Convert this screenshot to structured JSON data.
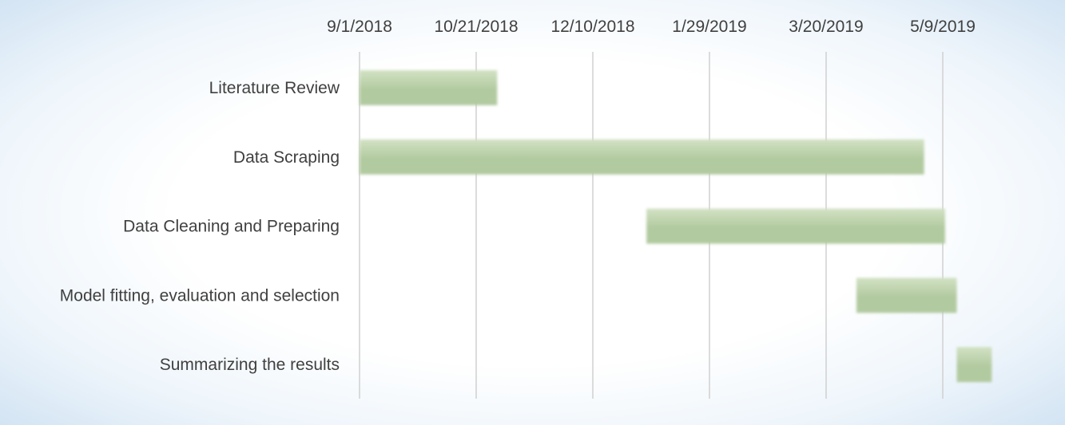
{
  "chart_data": {
    "type": "bar",
    "orientation": "horizontal",
    "subtype": "gantt",
    "title": "",
    "xlabel": "",
    "ylabel": "",
    "x_axis_position": "top",
    "x_ticks": [
      "9/1/2018",
      "10/21/2018",
      "12/10/2018",
      "1/29/2019",
      "3/20/2019",
      "5/9/2019"
    ],
    "xlim": [
      "9/1/2018",
      "6/8/2019"
    ],
    "grid": true,
    "legend": "none",
    "categories": [
      "Literature Review",
      "Data Scraping",
      "Data Cleaning and Preparing",
      "Model fitting, evaluation and selection",
      "Summarizing the results"
    ],
    "tasks": [
      {
        "label": "Literature Review",
        "start": "9/1/2018",
        "end": "10/30/2018"
      },
      {
        "label": "Data Scraping",
        "start": "9/1/2018",
        "end": "5/1/2019"
      },
      {
        "label": "Data Cleaning and Preparing",
        "start": "1/2/2019",
        "end": "5/10/2019"
      },
      {
        "label": "Model fitting, evaluation and selection",
        "start": "4/2/2019",
        "end": "5/15/2019"
      },
      {
        "label": "Summarizing the results",
        "start": "5/15/2019",
        "end": "5/30/2019"
      }
    ],
    "colors": {
      "bar": "#b2caa0",
      "bar_top": "#d2e2c4",
      "gridline": "#d0d0d0",
      "text": "#404040"
    }
  }
}
